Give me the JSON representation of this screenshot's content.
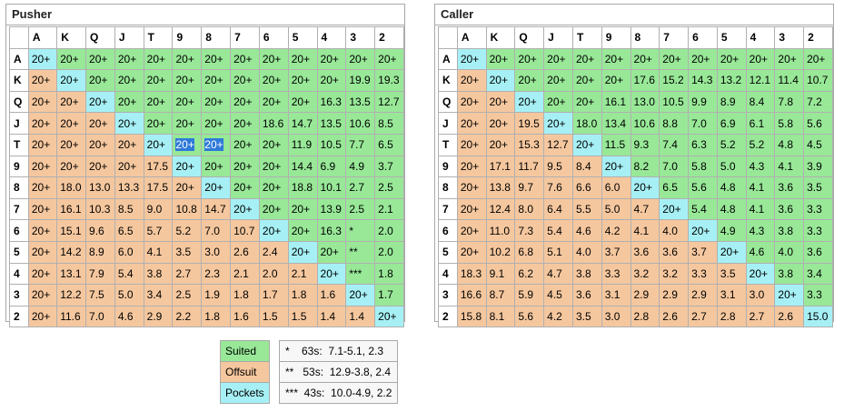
{
  "colors": {
    "suited": "#98e898",
    "offsuit": "#f5c79e",
    "pockets": "#a6f0f5",
    "highlight": "#2f7ad9"
  },
  "ranks": [
    "A",
    "K",
    "Q",
    "J",
    "T",
    "9",
    "8",
    "7",
    "6",
    "5",
    "4",
    "3",
    "2"
  ],
  "pusher": {
    "title": "Pusher",
    "selected_cells": [
      [
        4,
        5
      ],
      [
        4,
        6
      ]
    ],
    "rows": [
      [
        "20+",
        "20+",
        "20+",
        "20+",
        "20+",
        "20+",
        "20+",
        "20+",
        "20+",
        "20+",
        "20+",
        "20+",
        "20+"
      ],
      [
        "20+",
        "20+",
        "20+",
        "20+",
        "20+",
        "20+",
        "20+",
        "20+",
        "20+",
        "20+",
        "20+",
        "19.9",
        "19.3"
      ],
      [
        "20+",
        "20+",
        "20+",
        "20+",
        "20+",
        "20+",
        "20+",
        "20+",
        "20+",
        "20+",
        "16.3",
        "13.5",
        "12.7"
      ],
      [
        "20+",
        "20+",
        "20+",
        "20+",
        "20+",
        "20+",
        "20+",
        "20+",
        "18.6",
        "14.7",
        "13.5",
        "10.6",
        "8.5"
      ],
      [
        "20+",
        "20+",
        "20+",
        "20+",
        "20+",
        "20+",
        "20+",
        "20+",
        "20+",
        "11.9",
        "10.5",
        "7.7",
        "6.5"
      ],
      [
        "20+",
        "20+",
        "20+",
        "20+",
        "17.5",
        "20+",
        "20+",
        "20+",
        "20+",
        "14.4",
        "6.9",
        "4.9",
        "3.7"
      ],
      [
        "20+",
        "18.0",
        "13.0",
        "13.3",
        "17.5",
        "20+",
        "20+",
        "20+",
        "20+",
        "18.8",
        "10.1",
        "2.7",
        "2.5"
      ],
      [
        "20+",
        "16.1",
        "10.3",
        "8.5",
        "9.0",
        "10.8",
        "14.7",
        "20+",
        "20+",
        "20+",
        "13.9",
        "2.5",
        "2.1"
      ],
      [
        "20+",
        "15.1",
        "9.6",
        "6.5",
        "5.7",
        "5.2",
        "7.0",
        "10.7",
        "20+",
        "20+",
        "16.3",
        "*",
        "2.0"
      ],
      [
        "20+",
        "14.2",
        "8.9",
        "6.0",
        "4.1",
        "3.5",
        "3.0",
        "2.6",
        "2.4",
        "20+",
        "20+",
        "**",
        "2.0"
      ],
      [
        "20+",
        "13.1",
        "7.9",
        "5.4",
        "3.8",
        "2.7",
        "2.3",
        "2.1",
        "2.0",
        "2.1",
        "20+",
        "***",
        "1.8"
      ],
      [
        "20+",
        "12.2",
        "7.5",
        "5.0",
        "3.4",
        "2.5",
        "1.9",
        "1.8",
        "1.7",
        "1.8",
        "1.6",
        "20+",
        "1.7"
      ],
      [
        "20+",
        "11.6",
        "7.0",
        "4.6",
        "2.9",
        "2.2",
        "1.8",
        "1.6",
        "1.5",
        "1.5",
        "1.4",
        "1.4",
        "20+"
      ]
    ]
  },
  "caller": {
    "title": "Caller",
    "rows": [
      [
        "20+",
        "20+",
        "20+",
        "20+",
        "20+",
        "20+",
        "20+",
        "20+",
        "20+",
        "20+",
        "20+",
        "20+",
        "20+"
      ],
      [
        "20+",
        "20+",
        "20+",
        "20+",
        "20+",
        "20+",
        "17.6",
        "15.2",
        "14.3",
        "13.2",
        "12.1",
        "11.4",
        "10.7"
      ],
      [
        "20+",
        "20+",
        "20+",
        "20+",
        "20+",
        "16.1",
        "13.0",
        "10.5",
        "9.9",
        "8.9",
        "8.4",
        "7.8",
        "7.2"
      ],
      [
        "20+",
        "20+",
        "19.5",
        "20+",
        "18.0",
        "13.4",
        "10.6",
        "8.8",
        "7.0",
        "6.9",
        "6.1",
        "5.8",
        "5.6"
      ],
      [
        "20+",
        "20+",
        "15.3",
        "12.7",
        "20+",
        "11.5",
        "9.3",
        "7.4",
        "6.3",
        "5.2",
        "5.2",
        "4.8",
        "4.5"
      ],
      [
        "20+",
        "17.1",
        "11.7",
        "9.5",
        "8.4",
        "20+",
        "8.2",
        "7.0",
        "5.8",
        "5.0",
        "4.3",
        "4.1",
        "3.9"
      ],
      [
        "20+",
        "13.8",
        "9.7",
        "7.6",
        "6.6",
        "6.0",
        "20+",
        "6.5",
        "5.6",
        "4.8",
        "4.1",
        "3.6",
        "3.5"
      ],
      [
        "20+",
        "12.4",
        "8.0",
        "6.4",
        "5.5",
        "5.0",
        "4.7",
        "20+",
        "5.4",
        "4.8",
        "4.1",
        "3.6",
        "3.3"
      ],
      [
        "20+",
        "11.0",
        "7.3",
        "5.4",
        "4.6",
        "4.2",
        "4.1",
        "4.0",
        "20+",
        "4.9",
        "4.3",
        "3.8",
        "3.3"
      ],
      [
        "20+",
        "10.2",
        "6.8",
        "5.1",
        "4.0",
        "3.7",
        "3.6",
        "3.6",
        "3.7",
        "20+",
        "4.6",
        "4.0",
        "3.6"
      ],
      [
        "18.3",
        "9.1",
        "6.2",
        "4.7",
        "3.8",
        "3.3",
        "3.2",
        "3.2",
        "3.3",
        "3.5",
        "20+",
        "3.8",
        "3.4"
      ],
      [
        "16.6",
        "8.7",
        "5.9",
        "4.5",
        "3.6",
        "3.1",
        "2.9",
        "2.9",
        "2.9",
        "3.1",
        "3.0",
        "20+",
        "3.3"
      ],
      [
        "15.8",
        "8.1",
        "5.6",
        "4.2",
        "3.5",
        "3.0",
        "2.8",
        "2.6",
        "2.7",
        "2.8",
        "2.7",
        "2.6",
        "15.0"
      ]
    ]
  },
  "legend": {
    "suited": "Suited",
    "offsuit": "Offsuit",
    "pockets": "Pockets"
  },
  "notes": [
    "*    63s:  7.1-5.1, 2.3",
    "**   53s:  12.9-3.8, 2.4",
    "***  43s:  10.0-4.9, 2.2"
  ]
}
